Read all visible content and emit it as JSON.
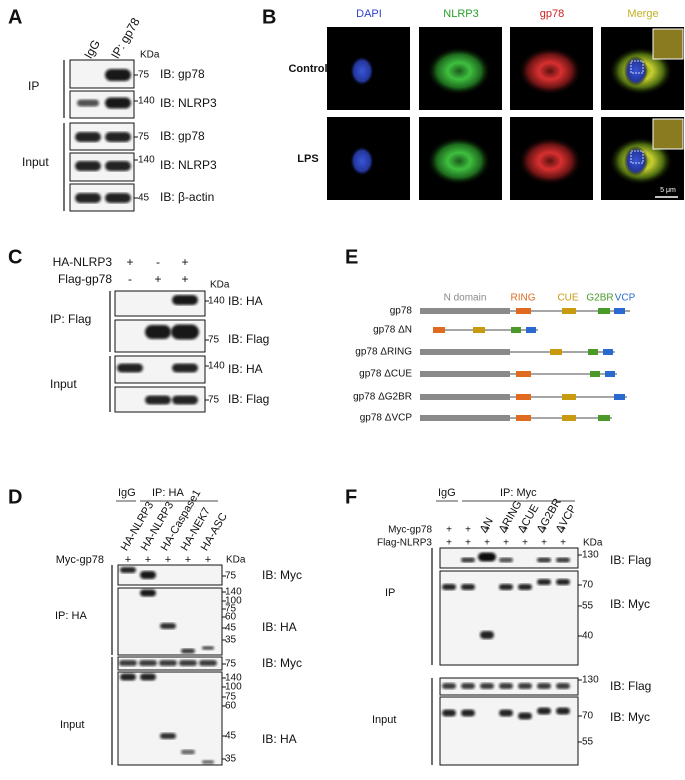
{
  "panels": {
    "a": {
      "label": "A",
      "lanes": [
        "IgG",
        "IP: gp78"
      ],
      "unit": "KDa",
      "groups": [
        "IP",
        "Input"
      ],
      "blots": [
        {
          "markers": [
            75
          ],
          "antibody": "IB: gp78"
        },
        {
          "markers": [
            140
          ],
          "antibody": "IB: NLRP3"
        },
        {
          "markers": [
            75
          ],
          "antibody": "IB: gp78"
        },
        {
          "markers": [
            140
          ],
          "antibody": "IB: NLRP3"
        },
        {
          "markers": [
            45
          ],
          "antibody": "IB: β-actin"
        }
      ]
    },
    "b": {
      "label": "B",
      "columns": [
        "DAPI",
        "NLRP3",
        "gp78",
        "Merge"
      ],
      "rows": [
        "Control",
        "LPS"
      ],
      "scale_bar": "5 μm"
    },
    "c": {
      "label": "C",
      "conditions": [
        {
          "name": "HA-NLRP3",
          "signs": [
            "+",
            "-",
            "+"
          ]
        },
        {
          "name": "Flag-gp78",
          "signs": [
            "-",
            "+",
            "+"
          ]
        }
      ],
      "unit": "KDa",
      "groups": [
        "IP: Flag",
        "Input"
      ],
      "blots": [
        {
          "markers": [
            140
          ],
          "antibody": "IB: HA"
        },
        {
          "markers": [
            75
          ],
          "antibody": "IB: Flag"
        },
        {
          "markers": [
            140
          ],
          "antibody": "IB: HA"
        },
        {
          "markers": [
            75
          ],
          "antibody": "IB: Flag"
        }
      ]
    },
    "d": {
      "label": "D",
      "headers": [
        "IgG",
        "IP: HA"
      ],
      "lanes": [
        "HA-NLRP3",
        "HA-NLRP3",
        "HA-Caspase1",
        "HA-NEK7",
        "HA-ASC"
      ],
      "conditions": [
        {
          "name": "Myc-gp78",
          "signs": [
            "+",
            "+",
            "+",
            "+",
            "+"
          ]
        }
      ],
      "unit": "KDa",
      "groups": [
        "IP: HA",
        "Input"
      ],
      "blots": [
        {
          "markers": [
            75
          ],
          "antibody": "IB: Myc"
        },
        {
          "markers": [
            140,
            100,
            75,
            60,
            45,
            35
          ],
          "antibody": "IB: HA"
        },
        {
          "markers": [
            75
          ],
          "antibody": "IB: Myc"
        },
        {
          "markers": [
            140,
            100,
            75,
            60,
            45,
            35
          ],
          "antibody": "IB: HA"
        }
      ]
    },
    "e": {
      "label": "E",
      "domains": [
        "N domain",
        "RING",
        "CUE",
        "G2BR",
        "VCP"
      ],
      "constructs": [
        "gp78",
        "gp78 ΔN",
        "gp78 ΔRING",
        "gp78 ΔCUE",
        "gp78 ΔG2BR",
        "gp78 ΔVCP"
      ]
    },
    "f": {
      "label": "F",
      "headers": [
        "IgG",
        "IP: Myc"
      ],
      "lanes": [
        "ΔN",
        "ΔRING",
        "ΔCUE",
        "ΔG2BR",
        "ΔVCP"
      ],
      "conditions": [
        {
          "name": "Myc-gp78",
          "signs": [
            "+",
            "+",
            "+",
            "+",
            "+",
            "+",
            "+"
          ]
        },
        {
          "name": "Flag-NLRP3",
          "signs": [
            "+",
            "+",
            "+",
            "+",
            "+",
            "+",
            "+"
          ]
        }
      ],
      "unit": "KDa",
      "groups": [
        "IP",
        "Input"
      ],
      "blots": [
        {
          "markers": [
            130
          ],
          "antibody": "IB: Flag"
        },
        {
          "markers": [
            70,
            55,
            40
          ],
          "antibody": "IB: Myc"
        },
        {
          "markers": [
            130
          ],
          "antibody": "IB: Flag"
        },
        {
          "markers": [
            70,
            55
          ],
          "antibody": "IB: Myc"
        }
      ]
    }
  }
}
